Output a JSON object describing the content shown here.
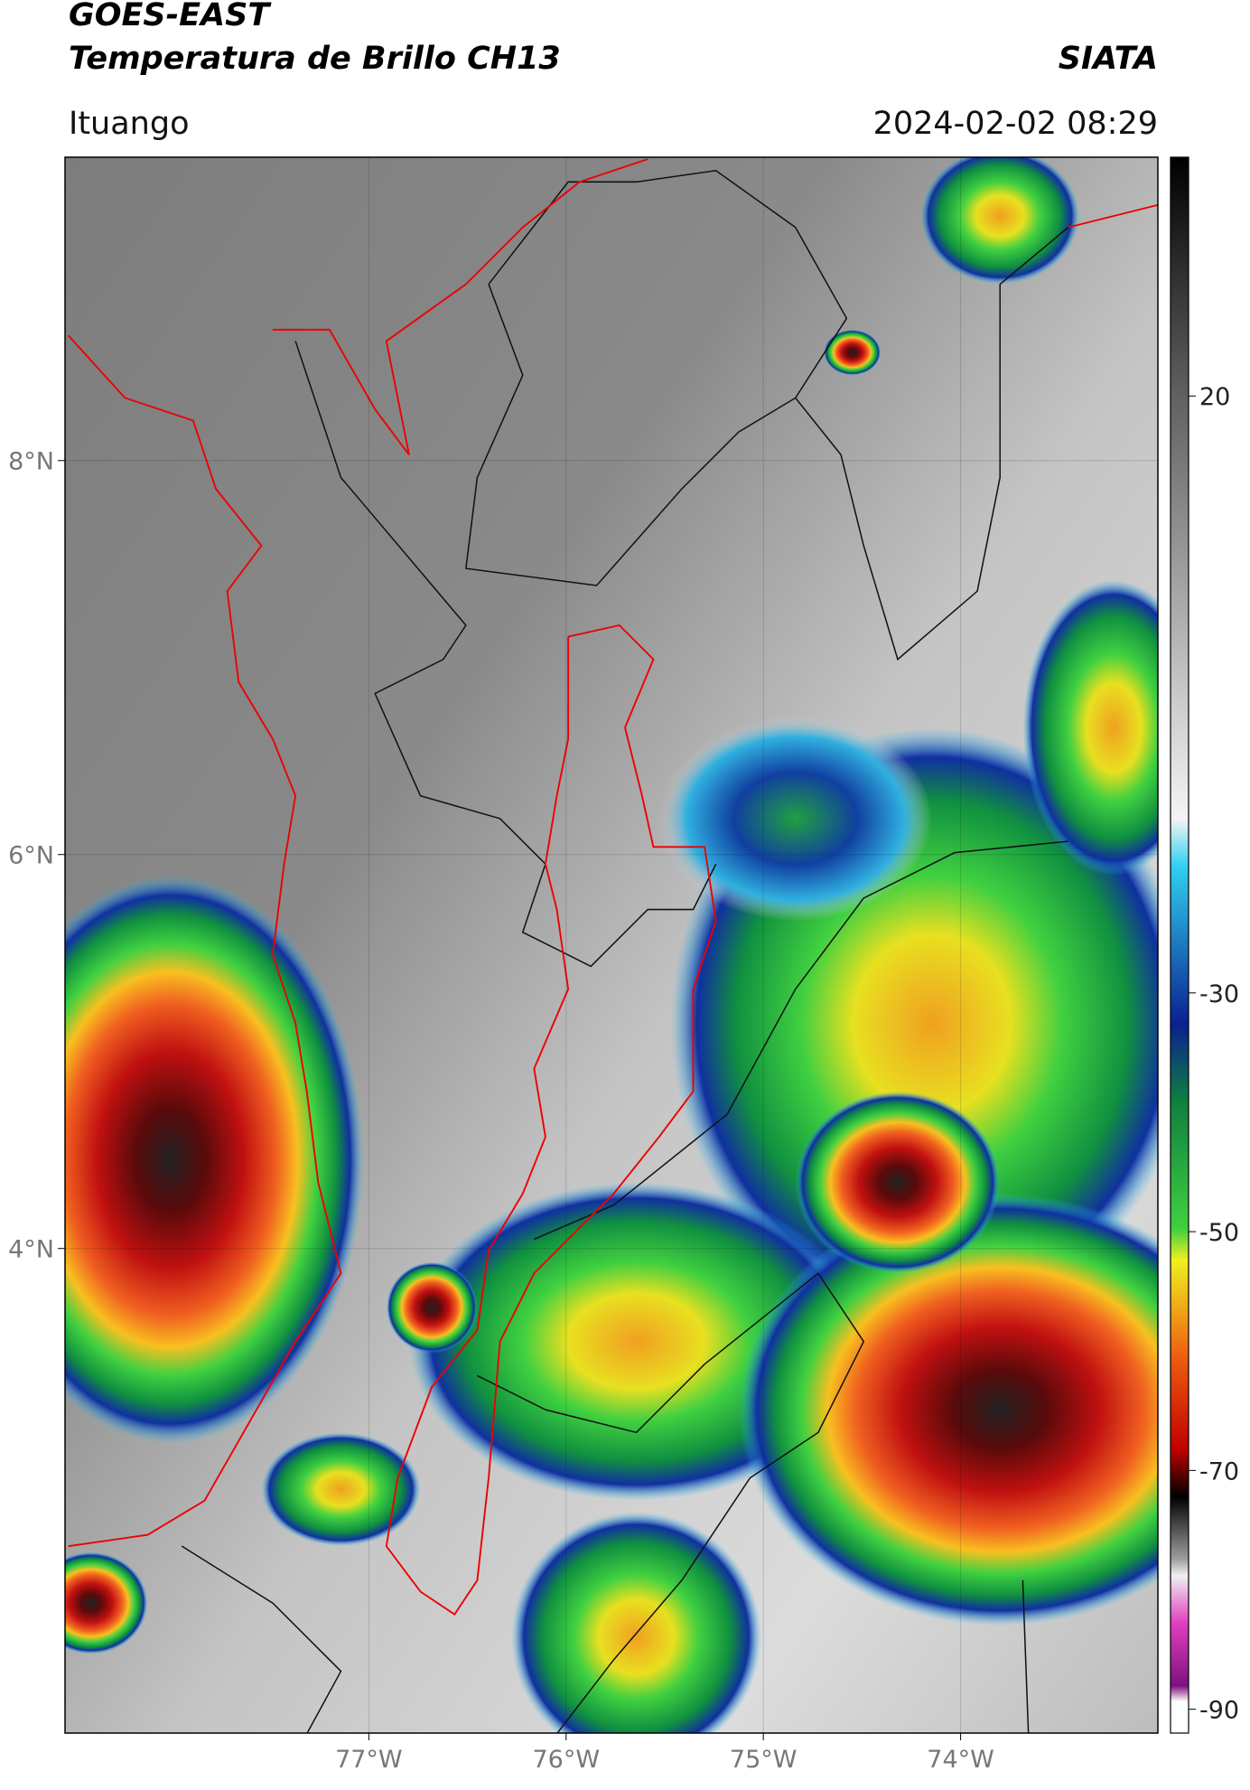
{
  "header": {
    "title": "GOES-EAST",
    "subtitle": "Temperatura de Brillo CH13",
    "source": "SIATA",
    "location": "Ituango",
    "datetime": "2024-02-02 08:29"
  },
  "map": {
    "lon_range": [
      -78.54,
      -73.0
    ],
    "lat_range": [
      1.54,
      9.54
    ],
    "lat_ticks": [
      {
        "value": 8,
        "label": "8°N"
      },
      {
        "value": 6,
        "label": "6°N"
      },
      {
        "value": 4,
        "label": "4°N"
      }
    ],
    "lon_ticks": [
      {
        "value": -77,
        "label": "77°W"
      },
      {
        "value": -76,
        "label": "76°W"
      },
      {
        "value": -75,
        "label": "75°W"
      },
      {
        "value": -74,
        "label": "74°W"
      }
    ]
  },
  "colorbar": {
    "range": [
      -92,
      40
    ],
    "ticks": [
      20,
      -30,
      -50,
      -70,
      -90
    ]
  }
}
